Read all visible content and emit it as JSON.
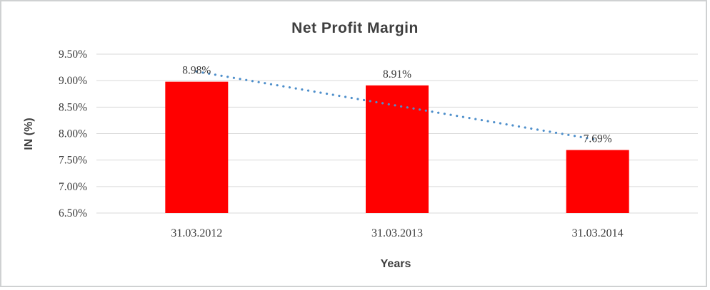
{
  "chart": {
    "title": "Net Profit Margin",
    "x_axis_title": "Years",
    "y_axis_title": "IN (%)"
  },
  "chart_data": {
    "type": "bar",
    "title": "Net Profit Margin",
    "xlabel": "Years",
    "ylabel": "IN (%)",
    "categories": [
      "31.03.2012",
      "31.03.2013",
      "31.03.2014"
    ],
    "values": [
      8.98,
      8.91,
      7.69
    ],
    "value_labels": [
      "8.98%",
      "8.91%",
      "7.69%"
    ],
    "ylim": [
      6.5,
      9.5
    ],
    "y_tick_values": [
      9.5,
      9.0,
      8.5,
      8.0,
      7.5,
      7.0,
      6.5
    ],
    "y_ticks": [
      "9.50%",
      "9.00%",
      "8.50%",
      "8.00%",
      "7.50%",
      "7.00%",
      "6.50%"
    ],
    "grid": true,
    "legend": "none",
    "bar_color": "#FF0000",
    "gridline_color": "#D9D9D9",
    "text_color": "#3A3A3A",
    "trendline": {
      "type": "linear",
      "style": "dotted",
      "color": "#4E8FCB"
    }
  }
}
